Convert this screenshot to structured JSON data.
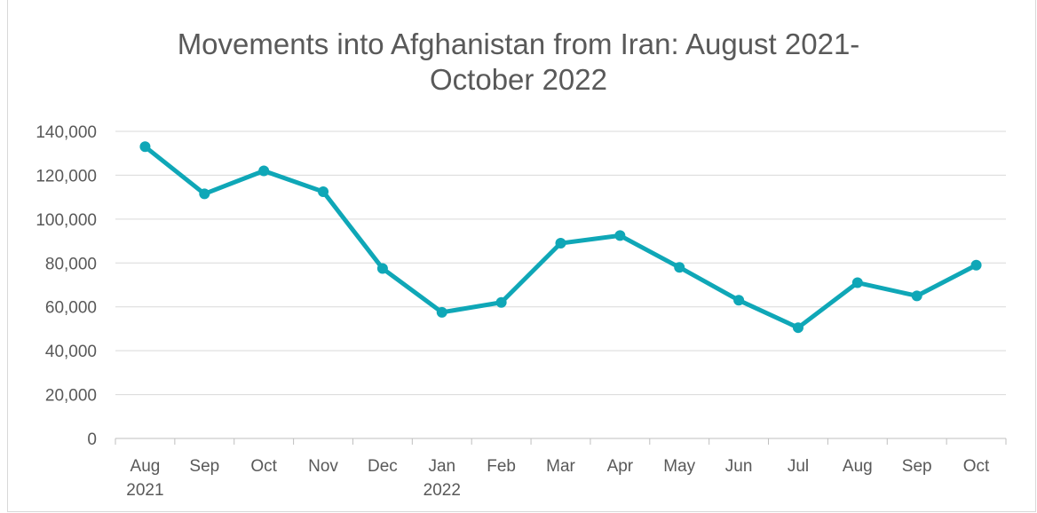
{
  "chart_data": {
    "type": "line",
    "title_lines": [
      "Movements into Afghanistan from Iran: August 2021-",
      "October 2022"
    ],
    "categories": [
      "Aug",
      "Sep",
      "Oct",
      "Nov",
      "Dec",
      "Jan",
      "Feb",
      "Mar",
      "Apr",
      "May",
      "Jun",
      "Jul",
      "Aug",
      "Sep",
      "Oct"
    ],
    "category_sublabels": [
      "2021",
      "",
      "",
      "",
      "",
      "2022",
      "",
      "",
      "",
      "",
      "",
      "",
      "",
      "",
      ""
    ],
    "series": [
      {
        "values": [
          133000,
          111500,
          122000,
          112500,
          77500,
          57500,
          62000,
          89000,
          92500,
          78000,
          63000,
          50500,
          71000,
          65000,
          79000
        ],
        "color": "#0fa7b7"
      }
    ],
    "y_ticks": [
      "0",
      "20,000",
      "40,000",
      "60,000",
      "80,000",
      "100,000",
      "120,000",
      "140,000"
    ],
    "ylim": [
      0,
      140000
    ],
    "grid": true,
    "legend": "none",
    "gridline_color": "#d9d9d9"
  }
}
